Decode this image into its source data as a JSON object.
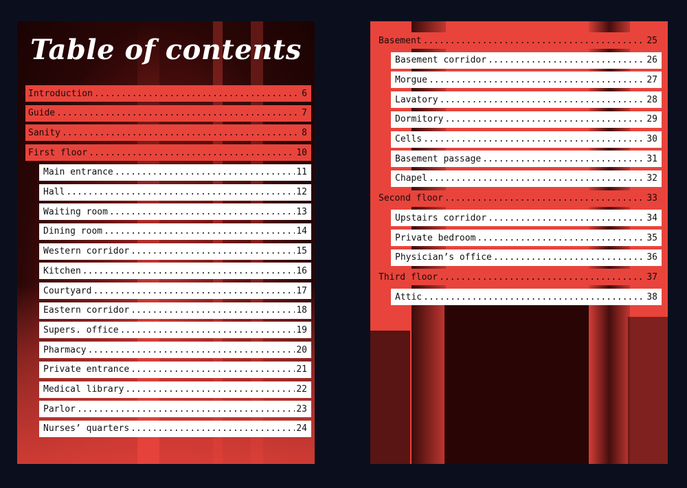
{
  "left_page": {
    "title": "Table of contents",
    "entries": [
      {
        "label": "Introduction",
        "page": "6",
        "level": "main"
      },
      {
        "label": "Guide",
        "page": "7",
        "level": "main"
      },
      {
        "label": "Sanity",
        "page": "8",
        "level": "main"
      },
      {
        "label": "First floor",
        "page": "10",
        "level": "main"
      },
      {
        "label": "Main entrance",
        "page": "11",
        "level": "sub"
      },
      {
        "label": "Hall",
        "page": "12",
        "level": "sub"
      },
      {
        "label": "Waiting room",
        "page": "13",
        "level": "sub"
      },
      {
        "label": "Dining room",
        "page": "14",
        "level": "sub"
      },
      {
        "label": "Western corridor",
        "page": "15",
        "level": "sub"
      },
      {
        "label": "Kitchen",
        "page": "16",
        "level": "sub"
      },
      {
        "label": "Courtyard",
        "page": "17",
        "level": "sub"
      },
      {
        "label": "Eastern corridor",
        "page": "18",
        "level": "sub"
      },
      {
        "label": "Supers. office",
        "page": "19",
        "level": "sub"
      },
      {
        "label": "Pharmacy",
        "page": "20",
        "level": "sub"
      },
      {
        "label": "Private entrance",
        "page": "21",
        "level": "sub"
      },
      {
        "label": "Medical library",
        "page": "22",
        "level": "sub"
      },
      {
        "label": "Parlor",
        "page": "23",
        "level": "sub"
      },
      {
        "label": "Nurses’ quarters",
        "page": "24",
        "level": "sub"
      }
    ]
  },
  "right_page": {
    "entries": [
      {
        "label": "Basement",
        "page": "25",
        "level": "main"
      },
      {
        "label": "Basement corridor",
        "page": "26",
        "level": "sub"
      },
      {
        "label": "Morgue",
        "page": "27",
        "level": "sub"
      },
      {
        "label": "Lavatory",
        "page": "28",
        "level": "sub"
      },
      {
        "label": "Dormitory",
        "page": "29",
        "level": "sub"
      },
      {
        "label": "Cells",
        "page": "30",
        "level": "sub"
      },
      {
        "label": "Basement passage",
        "page": "31",
        "level": "sub"
      },
      {
        "label": "Chapel",
        "page": "32",
        "level": "sub"
      },
      {
        "label": "Second floor",
        "page": "33",
        "level": "main"
      },
      {
        "label": "Upstairs corridor",
        "page": "34",
        "level": "sub"
      },
      {
        "label": "Private bedroom",
        "page": "35",
        "level": "sub"
      },
      {
        "label": "Physician’s office",
        "page": "36",
        "level": "sub"
      },
      {
        "label": "Third floor",
        "page": "37",
        "level": "main"
      },
      {
        "label": "Attic",
        "page": "38",
        "level": "sub"
      }
    ]
  },
  "colors": {
    "background": "#0b0f1d",
    "accent_red": "#e8443c",
    "entry_white": "#ffffff"
  }
}
